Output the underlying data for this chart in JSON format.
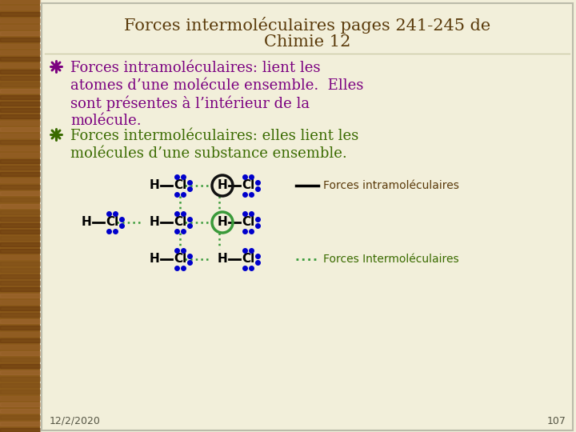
{
  "title_line1": "Forces intermoléculaires pages 241-245 de",
  "title_line2": "Chimie 12",
  "title_color": "#5A3A0A",
  "bullet1_color": "#7B0080",
  "bullet2_color": "#3A6B00",
  "bullet1_lines": [
    "Forces intramoléculaires: lient les",
    "atomes d’une molécule ensemble.  Elles",
    "sont présentes à l’intérieur de la",
    "molécule."
  ],
  "bullet2_lines": [
    "Forces intermoléculaires: elles lient les",
    "molécules d’une substance ensemble."
  ],
  "bg_color": "#F2EFDA",
  "sidebar_color": "#8B5A1A",
  "border_color": "#BBBBAA",
  "date_text": "12/2/2020",
  "page_text": "107",
  "legend1_text": "Forces intramoléculaires",
  "legend2_text": "Forces Intermoléculaires",
  "legend1_color": "#5A3A0A",
  "legend2_color": "#3A6B00",
  "dot_color": "#0000CC",
  "intramol_line_color": "#000000",
  "intermol_line_color": "#3A9A3A",
  "black_circle_color": "#111111",
  "green_circle_color": "#3A9A3A"
}
